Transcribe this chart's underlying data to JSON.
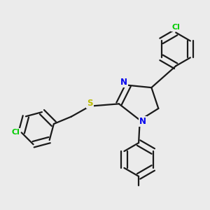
{
  "bg_color": "#ebebeb",
  "bond_color": "#1a1a1a",
  "bond_width": 1.6,
  "atom_colors": {
    "N": "#0000ee",
    "S": "#bbbb00",
    "Cl": "#00cc00",
    "C": "#1a1a1a"
  },
  "figsize": [
    3.0,
    3.0
  ],
  "dpi": 100
}
